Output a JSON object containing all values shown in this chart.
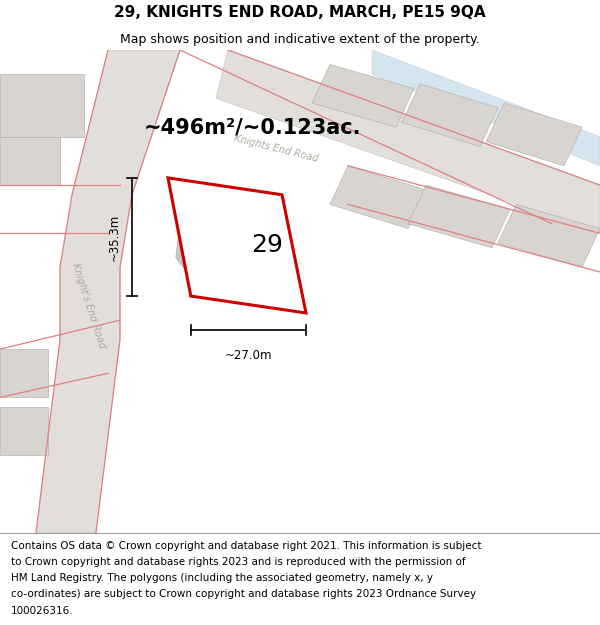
{
  "title": "29, KNIGHTS END ROAD, MARCH, PE15 9QA",
  "subtitle": "Map shows position and indicative extent of the property.",
  "footer_lines": [
    "Contains OS data © Crown copyright and database right 2021. This information is subject",
    "to Crown copyright and database rights 2023 and is reproduced with the permission of",
    "HM Land Registry. The polygons (including the associated geometry, namely x, y",
    "co-ordinates) are subject to Crown copyright and database rights 2023 Ordnance Survey",
    "100026316."
  ],
  "map_bg": "#f0eeeb",
  "road_fill": "#e2dfdb",
  "road_edge": "#ccc8c2",
  "blue_road_fill": "#d5e5f0",
  "blue_road_edge": "#b8cfe0",
  "building_fill": "#d8d5d0",
  "building_edge": "#b8b5b0",
  "red_line_color": "#e08080",
  "plot_fill": "white",
  "plot_edge": "#cc0000",
  "inner_building_fill": "#ccc8c2",
  "inner_building_edge": "#aba8a4",
  "dim_color": "black",
  "area_text": "~496m²/~0.123ac.",
  "number_text": "29",
  "dim_width_text": "~27.0m",
  "dim_height_text": "~35.3m",
  "road_label_diag": "Knights End Road",
  "road_label_vert": "Knight's End Road",
  "title_fontsize": 11,
  "subtitle_fontsize": 9,
  "footer_fontsize": 7.5,
  "area_fontsize": 15,
  "number_fontsize": 18,
  "dim_fontsize": 8.5,
  "road_label_fontsize": 7
}
